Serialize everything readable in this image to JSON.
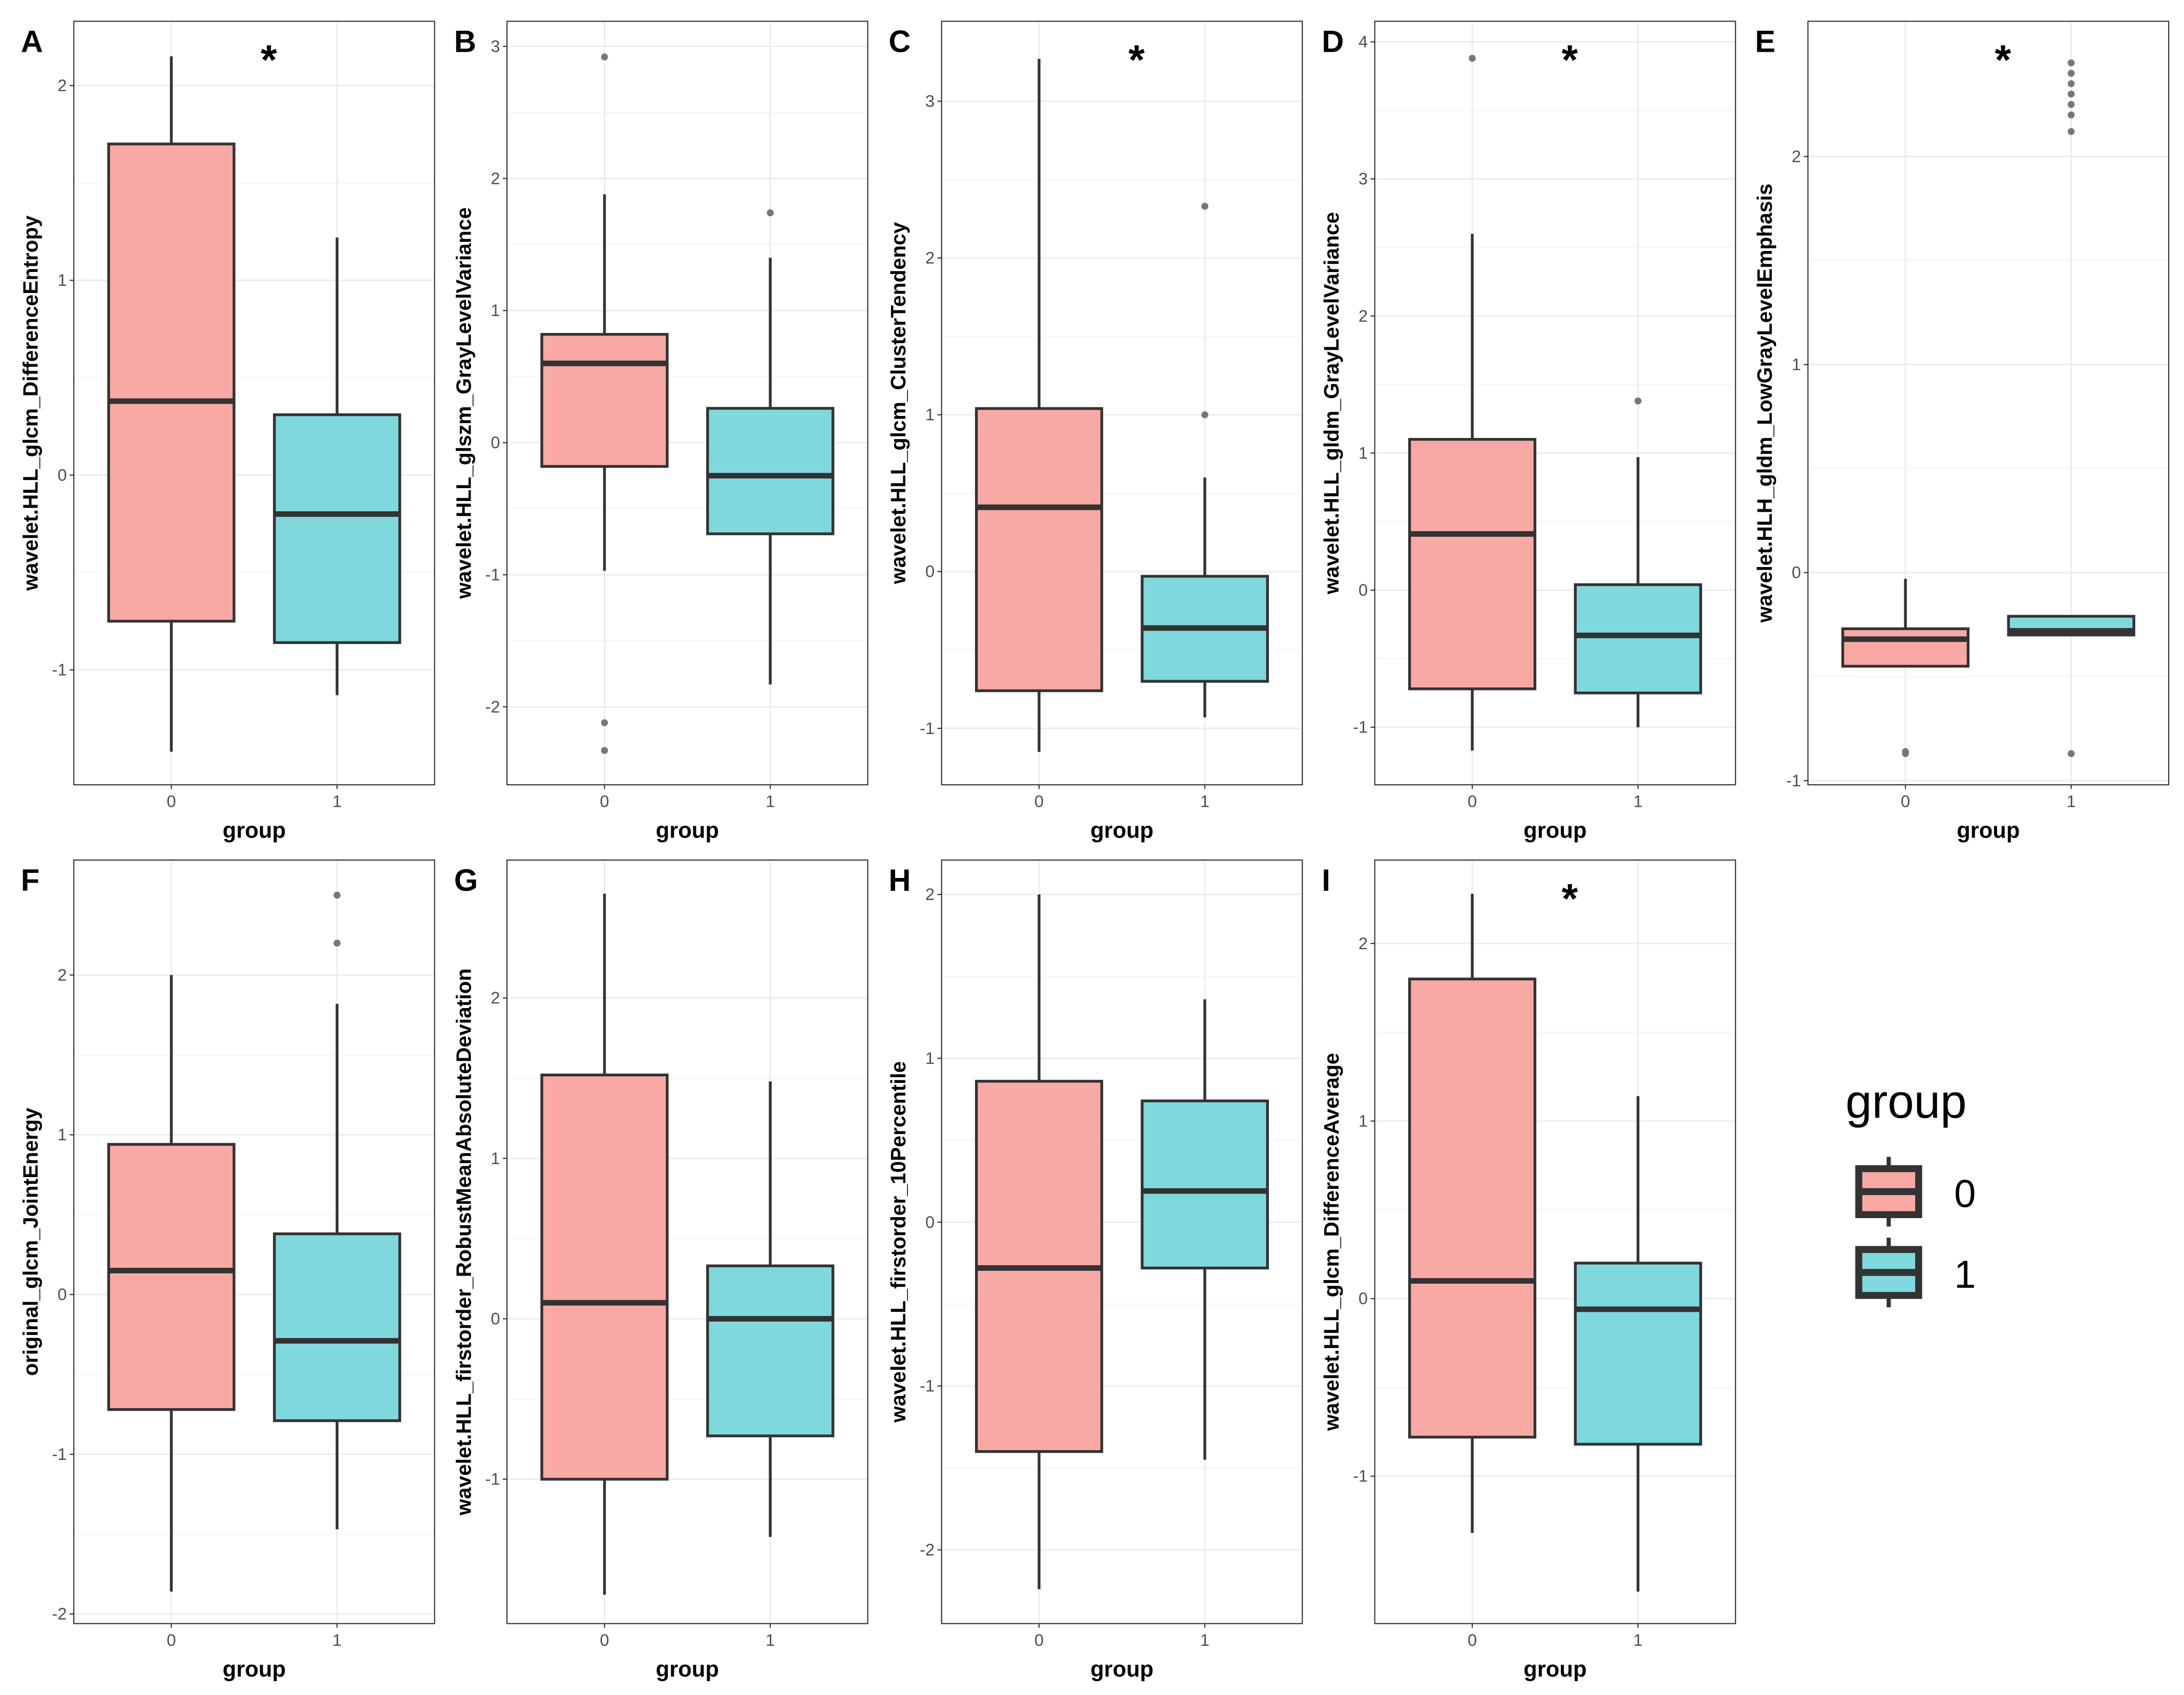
{
  "chart_data": {
    "type": "box",
    "xlabel": "group",
    "categories": [
      "0",
      "1"
    ],
    "colors": {
      "0": "#F8766D",
      "1": "#00BFC4"
    },
    "legend": {
      "title": "group",
      "entries": [
        "0",
        "1"
      ],
      "placement": "right"
    },
    "panels": [
      {
        "letter": "A",
        "ylabel": "wavelet.HLL_glcm_DifferenceEntropy",
        "star": "*",
        "ylim": [
          -1.59,
          2.33
        ],
        "yticks": [
          -1,
          0,
          1,
          2
        ],
        "boxes": [
          {
            "min": -1.42,
            "q1": -0.75,
            "median": 0.38,
            "q3": 1.7,
            "max": 2.15,
            "outliers": []
          },
          {
            "min": -1.13,
            "q1": -0.86,
            "median": -0.2,
            "q3": 0.31,
            "max": 1.22,
            "outliers": []
          }
        ]
      },
      {
        "letter": "B",
        "ylabel": "wavelet.HLL_glszm_GrayLevelVariance",
        "star": "",
        "ylim": [
          -2.59,
          3.19
        ],
        "yticks": [
          -2,
          -1,
          0,
          1,
          2,
          3
        ],
        "boxes": [
          {
            "min": -0.97,
            "q1": -0.18,
            "median": 0.6,
            "q3": 0.82,
            "max": 1.88,
            "outliers": [
              2.92,
              -2.12,
              -2.33
            ]
          },
          {
            "min": -1.83,
            "q1": -0.69,
            "median": -0.25,
            "q3": 0.26,
            "max": 1.4,
            "outliers": [
              1.74
            ]
          }
        ]
      },
      {
        "letter": "C",
        "ylabel": "wavelet.HLL_glcm_ClusterTendency",
        "star": "*",
        "ylim": [
          -1.36,
          3.51
        ],
        "yticks": [
          -1,
          0,
          1,
          2,
          3
        ],
        "boxes": [
          {
            "min": -1.15,
            "q1": -0.76,
            "median": 0.41,
            "q3": 1.04,
            "max": 3.27,
            "outliers": []
          },
          {
            "min": -0.93,
            "q1": -0.7,
            "median": -0.36,
            "q3": -0.03,
            "max": 0.6,
            "outliers": [
              1.0,
              2.33
            ]
          }
        ]
      },
      {
        "letter": "D",
        "ylabel": "wavelet.HLL_gldm_GrayLevelVariance",
        "star": "*",
        "ylim": [
          -1.42,
          4.15
        ],
        "yticks": [
          -1,
          0,
          1,
          2,
          3,
          4
        ],
        "boxes": [
          {
            "min": -1.17,
            "q1": -0.72,
            "median": 0.41,
            "q3": 1.1,
            "max": 2.6,
            "outliers": [
              3.88
            ]
          },
          {
            "min": -1.0,
            "q1": -0.75,
            "median": -0.33,
            "q3": 0.04,
            "max": 0.97,
            "outliers": [
              1.38
            ]
          }
        ]
      },
      {
        "letter": "E",
        "ylabel": "wavelet.HLH_gldm_LowGrayLevelEmphasis",
        "star": "*",
        "ylim": [
          -1.02,
          2.65
        ],
        "yticks": [
          -1,
          0,
          1,
          2
        ],
        "boxes": [
          {
            "min": -0.45,
            "q1": -0.45,
            "median": -0.32,
            "q3": -0.27,
            "max": -0.03,
            "outliers": [
              -0.86,
              -0.87
            ]
          },
          {
            "min": -0.3,
            "q1": -0.3,
            "median": -0.28,
            "q3": -0.21,
            "max": -0.21,
            "outliers": [
              -0.87,
              2.12,
              2.2,
              2.25,
              2.3,
              2.35,
              2.4,
              2.45
            ]
          }
        ]
      },
      {
        "letter": "F",
        "ylabel": "original_glcm_JointEnergy",
        "star": "",
        "ylim": [
          -2.06,
          2.72
        ],
        "yticks": [
          -2,
          -1,
          0,
          1,
          2
        ],
        "boxes": [
          {
            "min": -1.86,
            "q1": -0.72,
            "median": 0.15,
            "q3": 0.94,
            "max": 2.0,
            "outliers": []
          },
          {
            "min": -1.47,
            "q1": -0.79,
            "median": -0.29,
            "q3": 0.38,
            "max": 1.82,
            "outliers": [
              2.2,
              2.5
            ]
          }
        ]
      },
      {
        "letter": "G",
        "ylabel": "wavelet.HLL_firstorder_RobustMeanAbsoluteDeviation",
        "star": "",
        "ylim": [
          -1.9,
          2.86
        ],
        "yticks": [
          -1,
          0,
          1,
          2
        ],
        "boxes": [
          {
            "min": -1.72,
            "q1": -1.0,
            "median": 0.1,
            "q3": 1.52,
            "max": 2.65,
            "outliers": []
          },
          {
            "min": -1.36,
            "q1": -0.73,
            "median": 0.0,
            "q3": 0.33,
            "max": 1.48,
            "outliers": []
          }
        ]
      },
      {
        "letter": "H",
        "ylabel": "wavelet.HLL_firstorder_10Percentile",
        "star": "",
        "ylim": [
          -2.45,
          2.21
        ],
        "yticks": [
          -2,
          -1,
          0,
          1,
          2
        ],
        "boxes": [
          {
            "min": -2.24,
            "q1": -1.4,
            "median": -0.28,
            "q3": 0.86,
            "max": 2.0,
            "outliers": []
          },
          {
            "min": -1.45,
            "q1": -0.28,
            "median": 0.19,
            "q3": 0.74,
            "max": 1.36,
            "outliers": []
          }
        ]
      },
      {
        "letter": "I",
        "ylabel": "wavelet.HLL_glcm_DifferenceAverage",
        "star": "*",
        "ylim": [
          -1.83,
          2.47
        ],
        "yticks": [
          -1,
          0,
          1,
          2
        ],
        "boxes": [
          {
            "min": -1.32,
            "q1": -0.78,
            "median": 0.1,
            "q3": 1.8,
            "max": 2.28,
            "outliers": []
          },
          {
            "min": -1.65,
            "q1": -0.82,
            "median": -0.06,
            "q3": 0.2,
            "max": 1.14,
            "outliers": []
          }
        ]
      }
    ]
  }
}
